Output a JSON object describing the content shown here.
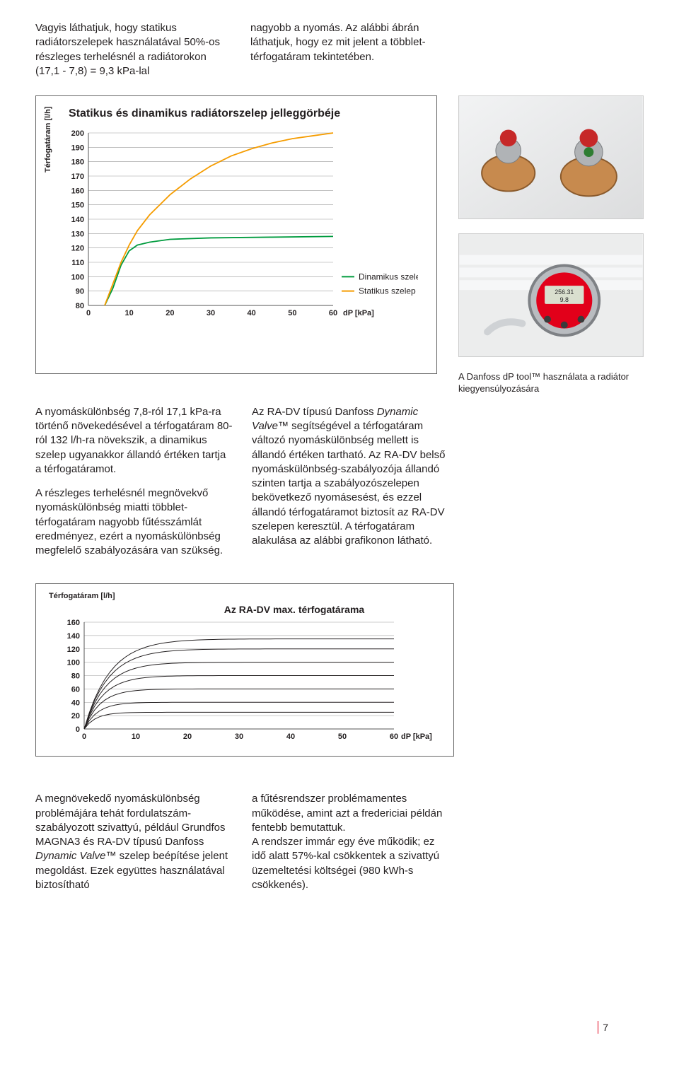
{
  "intro": {
    "left": "Vagyis láthatjuk, hogy statikus radiátorszelepek használatával 50%-os részleges terhelésnél a radiátorokon (17,1 - 7,8) = 9,3 kPa-lal",
    "right": "nagyobb a nyomás. Az alábbi ábrán láthatjuk, hogy ez mit jelent a többlet-térfogatáram tekintetében."
  },
  "chart1": {
    "title": "Statikus és dinamikus radiátorszelep jelleggörbéje",
    "ylabel": "Térfogatáram [l/h]",
    "xlabel": "dP [kPa]",
    "y_ticks": [
      80,
      90,
      100,
      110,
      120,
      130,
      140,
      150,
      160,
      170,
      180,
      190,
      200
    ],
    "x_ticks": [
      0,
      10,
      20,
      30,
      40,
      50,
      60
    ],
    "ylim": [
      80,
      200
    ],
    "xlim": [
      0,
      60
    ],
    "series": {
      "dinamikus": {
        "label": "Dinamikus szelep",
        "color": "#009b3e",
        "width": 1.8,
        "pts": [
          [
            4,
            80
          ],
          [
            6,
            92
          ],
          [
            8,
            108
          ],
          [
            10,
            118
          ],
          [
            12,
            122
          ],
          [
            15,
            124
          ],
          [
            20,
            126
          ],
          [
            30,
            127
          ],
          [
            45,
            127.5
          ],
          [
            60,
            128
          ]
        ]
      },
      "statikus": {
        "label": "Statikus szelep",
        "color": "#f59c00",
        "width": 1.8,
        "pts": [
          [
            4,
            80
          ],
          [
            6,
            95
          ],
          [
            8,
            110
          ],
          [
            10,
            122
          ],
          [
            12,
            132
          ],
          [
            15,
            143
          ],
          [
            20,
            157
          ],
          [
            25,
            168
          ],
          [
            30,
            177
          ],
          [
            35,
            184
          ],
          [
            40,
            189
          ],
          [
            45,
            193
          ],
          [
            50,
            196
          ],
          [
            55,
            198
          ],
          [
            60,
            200
          ]
        ]
      }
    },
    "frame_color": "#555555",
    "grid_color": "#999999"
  },
  "photo_caption": "A Danfoss dP tool™ használata a radiátor kiegyensúlyozására",
  "body": {
    "col1_p1": "A nyomáskülönbség 7,8-ról 17,1 kPa-ra történő növekedésével a térfogatáram 80-ról 132 l/h-ra növekszik, a dinamikus szelep ugyanakkor állandó értéken tartja a térfogatáramot.",
    "col1_p2": "A részleges terhelésnél megnövekvő nyomáskülönbség miatti többlet-térfogatáram nagyobb fűtésszámlát eredményez, ezért a nyomáskülönbség megfelelő szabályozására van szükség.",
    "col2_prefix": "Az RA-DV típusú Danfoss ",
    "col2_ital": "Dynamic Valve™",
    "col2_rest": " segítségével a térfogatáram változó nyomáskülönbség mellett is állandó értéken tartható. Az RA-DV belső nyomáskülönbség-szabályozója állandó szinten tartja a szabályozószelepen bekövetkező nyomásesést, és ezzel állandó térfogatáramot biztosít az RA-DV szelepen keresztül. A térfogatáram alakulása az alábbi grafikonon látható."
  },
  "chart2": {
    "title": "Az RA-DV max. térfogatárama",
    "ylabel": "Térfogatáram [l/h]",
    "xlabel": "dP [kPa]",
    "y_ticks": [
      0,
      20,
      40,
      60,
      80,
      100,
      120,
      140,
      160
    ],
    "x_ticks": [
      0,
      10,
      20,
      30,
      40,
      50,
      60
    ],
    "ylim": [
      0,
      160
    ],
    "xlim": [
      0,
      60
    ],
    "line_color": "#231f20",
    "line_width": 1.0,
    "curves_plateau": [
      25,
      40,
      60,
      80,
      100,
      120,
      135
    ]
  },
  "bottom": {
    "col1_a": "A megnövekedő nyomáskülönbség problémájára tehát fordulatszám-szabályozott szivattyú, például Grundfos MAGNA3 és RA-DV típusú Danfoss ",
    "col1_ital": "Dynamic Valve™",
    "col1_b": " szelep beépítése jelent megoldást. Ezek együttes használatával biztosítható",
    "col2": "a fűtésrendszer problémamentes működése, amint azt a fredericiai példán fentebb bemutattuk.\nA rendszer immár egy éve működik; ez idő alatt 57%-kal csökkentek a szivattyú üzemeltetési költségei (980 kWh-s csökkenés)."
  },
  "page_number": "7"
}
